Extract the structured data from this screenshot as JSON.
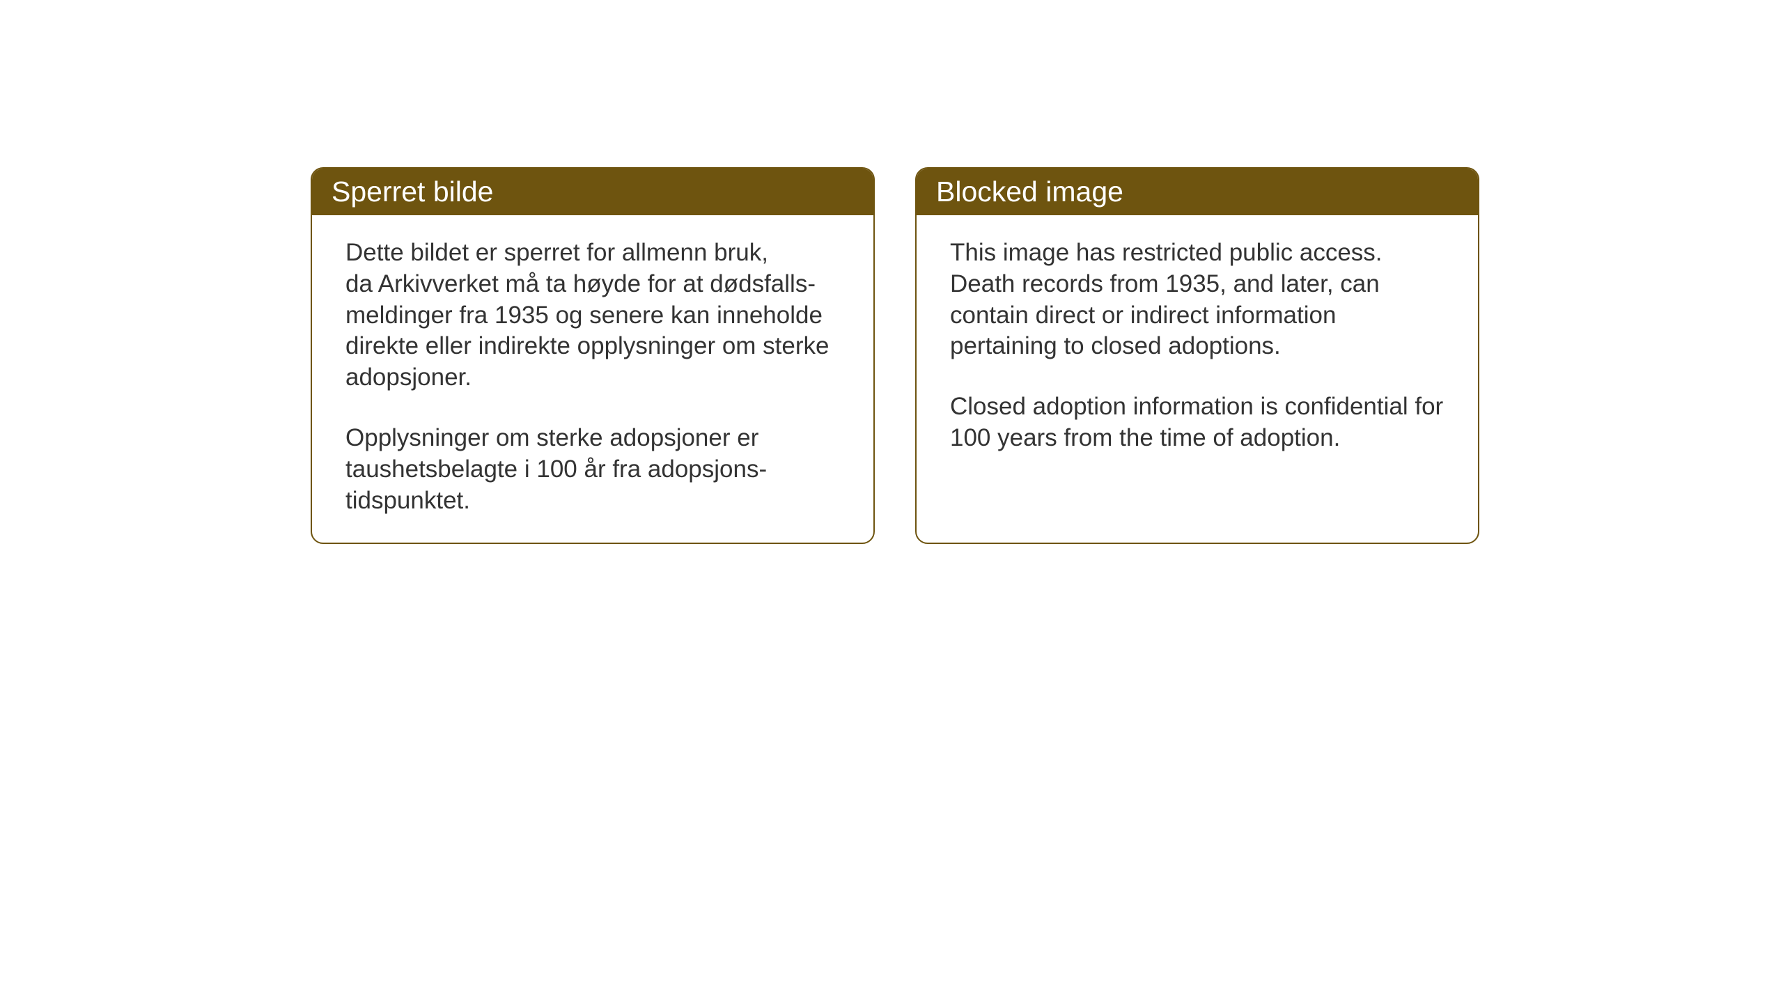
{
  "layout": {
    "background_color": "#ffffff",
    "card_border_color": "#6e540f",
    "card_header_bg": "#6e540f",
    "card_header_text_color": "#ffffff",
    "card_body_text_color": "#333333",
    "card_border_radius": 18,
    "header_fontsize": 41,
    "body_fontsize": 35
  },
  "cards": [
    {
      "title": "Sperret bilde",
      "para1": "Dette bildet er sperret for allmenn bruk,       da Arkivverket må ta høyde for at dødsfalls-meldinger fra 1935 og senere kan inneholde direkte eller indirekte opplysninger om sterke adopsjoner.",
      "para2": "Opplysninger om sterke adopsjoner er taushetsbelagte i 100 år fra adopsjons-tidspunktet."
    },
    {
      "title": "Blocked image",
      "para1": "This image has restricted public access. Death records from 1935, and later, can contain direct or indirect information pertaining to closed adoptions.",
      "para2": "Closed adoption information is confidential for 100 years from the time of adoption."
    }
  ]
}
